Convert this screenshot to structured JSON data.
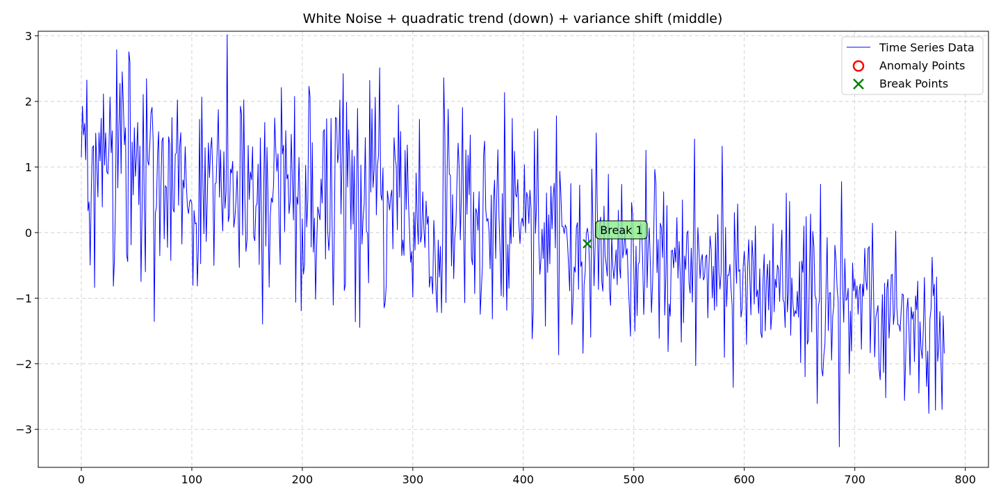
{
  "chart_data": {
    "type": "line",
    "title": "White Noise + quadratic trend (down) + variance shift (middle)",
    "xlabel": "",
    "ylabel": "",
    "xlim": [
      -39,
      821
    ],
    "ylim": [
      -3.58,
      3.07
    ],
    "x_ticks": [
      0,
      100,
      200,
      300,
      400,
      500,
      600,
      700,
      800
    ],
    "y_ticks": [
      -3,
      -2,
      -1,
      0,
      1,
      2,
      3
    ],
    "x_tick_labels": [
      "0",
      "100",
      "200",
      "300",
      "400",
      "500",
      "600",
      "700",
      "800"
    ],
    "y_tick_labels": [
      "−3",
      "−2",
      "−1",
      "0",
      "1",
      "2",
      "3"
    ],
    "grid": true,
    "legend_position": "top-right",
    "n_points": 782,
    "series": [
      {
        "name": "Time Series Data",
        "color": "#0000ff",
        "trend": {
          "start": 1.0,
          "end": -1.5
        },
        "noise_std_before_break": 0.72,
        "noise_std_after_break": 0.62,
        "values": [
          [
            0,
            1.15
          ],
          [
            1,
            1.93
          ],
          [
            5,
            2.33
          ],
          [
            8,
            -0.5
          ],
          [
            13,
            1.52
          ],
          [
            26,
            2.07
          ],
          [
            29,
            -0.82
          ],
          [
            35,
            2.28
          ],
          [
            43,
            2.76
          ],
          [
            54,
            -0.75
          ],
          [
            59,
            2.35
          ],
          [
            66,
            -1.36
          ],
          [
            75,
            -0.1
          ],
          [
            101,
            -0.81
          ],
          [
            109,
            2.07
          ],
          [
            141,
            0.94
          ],
          [
            144,
            1.93
          ],
          [
            164,
            -1.4
          ],
          [
            193,
            2.08
          ],
          [
            212,
            -1.02
          ],
          [
            228,
            -1.11
          ],
          [
            240,
            1.99
          ],
          [
            252,
            -1.45
          ],
          [
            263,
            1.89
          ],
          [
            274,
            -1.15
          ],
          [
            300,
            -0.99
          ],
          [
            306,
            1.73
          ],
          [
            322,
            -1.22
          ],
          [
            345,
            1.91
          ],
          [
            361,
            -1.25
          ],
          [
            372,
            -1.32
          ],
          [
            410,
            1.55
          ],
          [
            432,
            -1.87
          ],
          [
            461,
            -1.6
          ],
          [
            531,
            -1.82
          ],
          [
            555,
            1.43
          ],
          [
            580,
            1.32
          ],
          [
            602,
            -1.71
          ],
          [
            666,
            -2.61
          ],
          [
            669,
            0.74
          ],
          [
            686,
            -3.27
          ],
          [
            688,
            0.78
          ],
          [
            767,
            -2.76
          ],
          [
            773,
            -2.71
          ],
          [
            782,
            -0.95
          ]
        ]
      },
      {
        "name": "Anomaly Points",
        "marker": "circle",
        "color": "#ff0000",
        "points": []
      },
      {
        "name": "Break Points",
        "marker": "x",
        "color": "#008000",
        "points": [
          {
            "x": 458,
            "y": -0.17
          }
        ]
      }
    ],
    "annotations": [
      {
        "text": "Break 1",
        "x": 458,
        "y": -0.17,
        "color": "#90ee90"
      }
    ]
  }
}
